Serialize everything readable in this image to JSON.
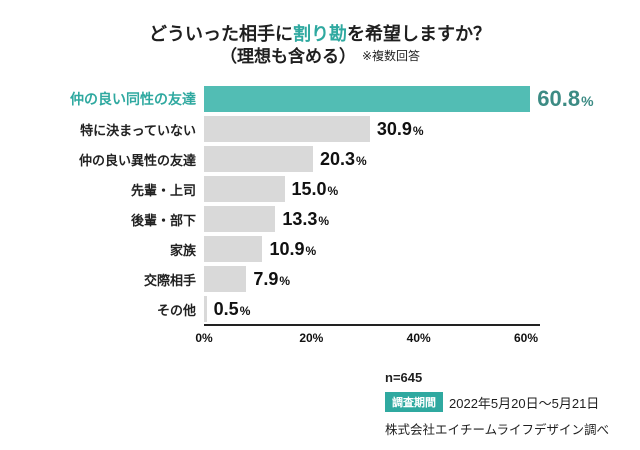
{
  "title": {
    "line1_pre": "どういった相手に",
    "line1_highlight": "割り勘",
    "line1_post": "を希望しますか？",
    "line2": "（理想も含める）",
    "line2_note": "※複数回答"
  },
  "chart_data": {
    "type": "bar",
    "orientation": "horizontal",
    "categories": [
      "仲の良い同性の友達",
      "特に決まっていない",
      "仲の良い異性の友達",
      "先輩・上司",
      "後輩・部下",
      "家族",
      "交際相手",
      "その他"
    ],
    "values": [
      60.8,
      30.9,
      20.3,
      15.0,
      13.3,
      10.9,
      7.9,
      0.5
    ],
    "value_labels": [
      "60.8",
      "30.9",
      "20.3",
      "15.0",
      "13.3",
      "10.9",
      "7.9",
      "0.5"
    ],
    "unit": "%",
    "highlight_index": 0,
    "xlim": [
      0,
      60
    ],
    "ticks": [
      0,
      20,
      40,
      60
    ],
    "tick_labels": [
      "0%",
      "20%",
      "40%",
      "60%"
    ],
    "legend": "none",
    "grid": "off"
  },
  "colors": {
    "accent": "#2fa9a0",
    "bar_teal": "#52bdb4",
    "bar_gray": "#d9d9d9",
    "value_highlight": "#3c8b84",
    "text": "#1f1f1f"
  },
  "footer": {
    "n_label": "n=645",
    "period_badge": "調査期間",
    "period_value": "2022年5月20日〜5月21日",
    "source": "株式会社エイチームライフデザイン調べ"
  }
}
